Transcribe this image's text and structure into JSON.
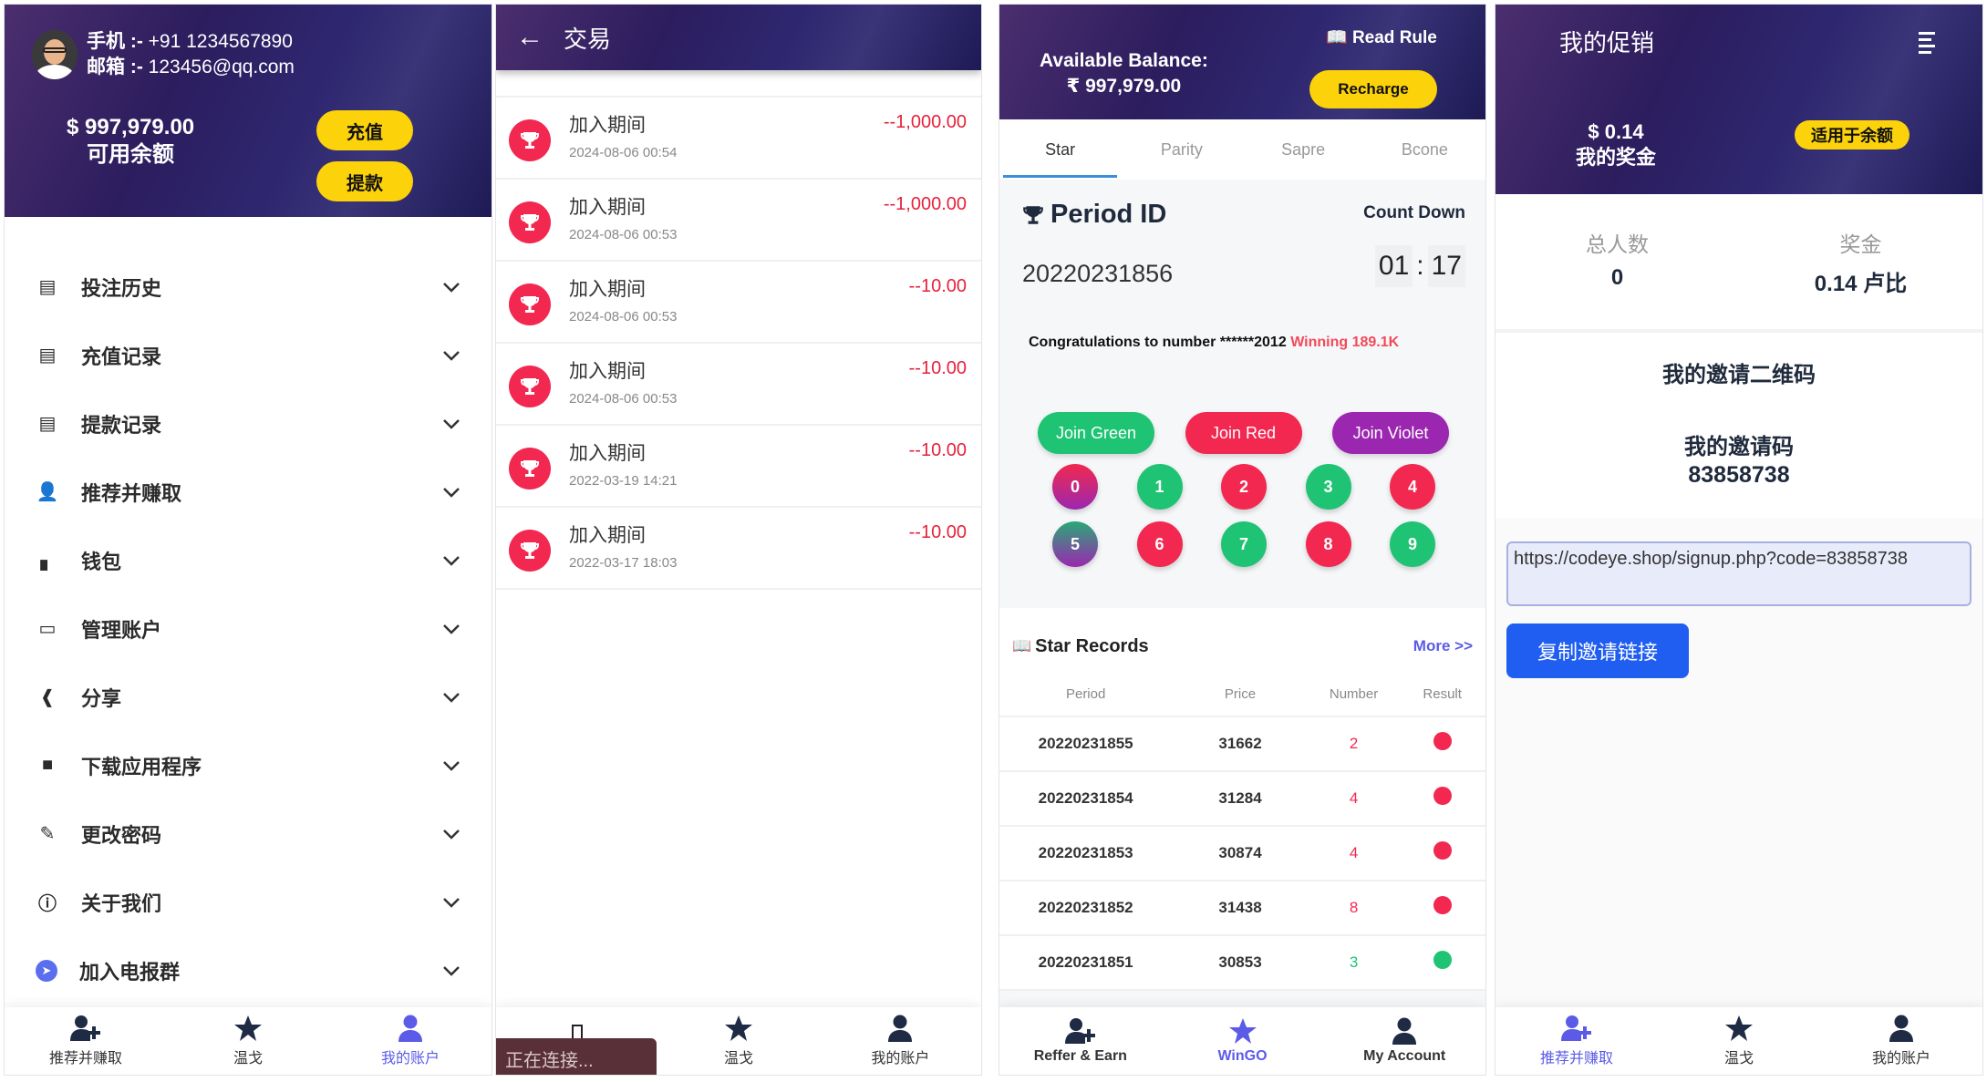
{
  "account_panel": {
    "phone_label": "手机 :-",
    "phone": "+91 1234567890",
    "email_label": "邮箱 :-",
    "email": "123456@qq.com",
    "balance": "$ 997,979.00",
    "balance_label": "可用余额",
    "recharge": "充值",
    "withdraw": "提款",
    "menu": [
      {
        "label": "投注历史",
        "icon": "list-icon"
      },
      {
        "label": "充值记录",
        "icon": "list-icon"
      },
      {
        "label": "提款记录",
        "icon": "list-icon"
      },
      {
        "label": "推荐并赚取",
        "icon": "user-plus-icon"
      },
      {
        "label": "钱包",
        "icon": "wallet-icon"
      },
      {
        "label": "管理账户",
        "icon": "credit-card-icon"
      },
      {
        "label": "分享",
        "icon": "share-icon"
      },
      {
        "label": "下载应用程序",
        "icon": "android-icon"
      },
      {
        "label": "更改密码",
        "icon": "edit-icon"
      },
      {
        "label": "关于我们",
        "icon": "info-icon"
      },
      {
        "label": "加入电报群",
        "icon": "telegram-icon"
      }
    ],
    "nav": [
      "推荐并赚取",
      "温戈",
      "我的账户"
    ],
    "active_nav": 2
  },
  "transactions_panel": {
    "title": "交易",
    "items": [
      {
        "title": "加入期间",
        "date": "2024-08-06 00:54",
        "amount": "--1,000.00"
      },
      {
        "title": "加入期间",
        "date": "2024-08-06 00:53",
        "amount": "--1,000.00"
      },
      {
        "title": "加入期间",
        "date": "2024-08-06 00:53",
        "amount": "--10.00"
      },
      {
        "title": "加入期间",
        "date": "2024-08-06 00:53",
        "amount": "--10.00"
      },
      {
        "title": "加入期间",
        "date": "2022-03-19 14:21",
        "amount": "--10.00"
      },
      {
        "title": "加入期间",
        "date": "2022-03-17 18:03",
        "amount": "--10.00"
      }
    ],
    "toast": "正在连接...",
    "nav": [
      "",
      "温戈",
      "我的账户"
    ]
  },
  "game_panel": {
    "balance_label": "Available Balance:",
    "balance": "₹ 997,979.00",
    "read_rule": "Read Rule",
    "recharge": "Recharge",
    "tabs": [
      "Star",
      "Parity",
      "Sapre",
      "Bcone"
    ],
    "active_tab": 0,
    "period_label": "Period ID",
    "period_id": "20220231856",
    "countdown_label": "Count Down",
    "countdown_min": "01",
    "countdown_sep": ":",
    "countdown_sec": "17",
    "congrats": "Congratulations to number ******2012",
    "winning": "Winning 189.1K",
    "join_green": "Join Green",
    "join_red": "Join Red",
    "join_violet": "Join Violet",
    "numbers": [
      "0",
      "1",
      "2",
      "3",
      "4",
      "5",
      "6",
      "7",
      "8",
      "9"
    ],
    "records_title": "Star Records",
    "more": "More >>",
    "columns": [
      "Period",
      "Price",
      "Number",
      "Result"
    ],
    "records": [
      {
        "period": "20220231855",
        "price": "31662",
        "number": "2",
        "result": "red"
      },
      {
        "period": "20220231854",
        "price": "31284",
        "number": "4",
        "result": "red"
      },
      {
        "period": "20220231853",
        "price": "30874",
        "number": "4",
        "result": "red"
      },
      {
        "period": "20220231852",
        "price": "31438",
        "number": "8",
        "result": "red"
      },
      {
        "period": "20220231851",
        "price": "30853",
        "number": "3",
        "result": "green"
      }
    ],
    "nav": [
      "Reffer & Earn",
      "WinGO",
      "My Account"
    ],
    "active_nav": 1
  },
  "promo_panel": {
    "title": "我的促销",
    "bonus": "$ 0.14",
    "bonus_label": "我的奖金",
    "apply": "适用于余额",
    "total_label": "总人数",
    "total": "0",
    "reward_label": "奖金",
    "reward": "0.14 卢比",
    "qr_title": "我的邀请二维码",
    "code_label": "我的邀请码",
    "code": "83858738",
    "link": "https://codeye.shop/signup.php?code=83858738",
    "copy": "复制邀请链接",
    "nav": [
      "推荐并赚取",
      "温戈",
      "我的账户"
    ],
    "active_nav": 0
  },
  "colors": {
    "accent": "#5b5be8",
    "yellow": "#fcd20b",
    "red": "#f22850",
    "green": "#1ec473",
    "violet": "#9b27b0",
    "link_blue": "#1f5ef0"
  }
}
